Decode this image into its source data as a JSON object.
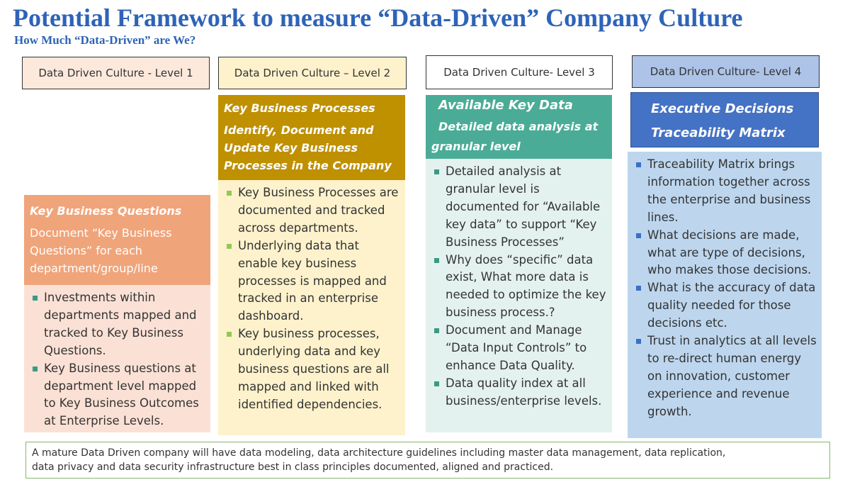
{
  "title": "Potential Framework to measure “Data-Driven” Company Culture",
  "subtitle": "How Much “Data-Driven” are We?",
  "columns": [
    {
      "level_label": "Data Driven Culture -  Level 1",
      "heading_lines": [
        "Key Business  Questions",
        "Document “Key Business",
        "Questions” for each",
        "department/group/line"
      ],
      "bullets": [
        "Investments within departments mapped and tracked to Key Business Questions.",
        "Key Business questions at department level mapped to Key Business Outcomes at Enterprise Levels."
      ]
    },
    {
      "level_label": "Data Driven Culture – Level  2",
      "heading_lines": [
        "Key Business Processes",
        "Identify, Document and",
        "Update Key Business",
        "Processes in the Company"
      ],
      "bullets": [
        "Key Business Processes are documented and tracked across departments.",
        "Underlying data that enable key business processes is mapped and tracked in an enterprise dashboard.",
        "Key business processes, underlying data and key business questions are all mapped and linked with identified dependencies."
      ]
    },
    {
      "level_label": "Data Driven Culture- Level 3",
      "heading_lines": [
        "Available Key Data",
        "Detailed data analysis at",
        "granular level"
      ],
      "bullets": [
        "Detailed analysis at granular level is documented for “Available key data” to support “Key Business Processes”",
        "Why does “specific” data exist, What more data is needed to optimize the key business process.?",
        "Document and Manage “Data Input Controls” to enhance Data Quality.",
        "Data quality index at all business/enterprise levels."
      ]
    },
    {
      "level_label": "Data Driven Culture- Level 4",
      "heading_lines": [
        "Executive Decisions",
        "Traceability Matrix"
      ],
      "bullets": [
        "Traceability Matrix brings information together across the enterprise and business lines.",
        "What decisions are made, what are type of decisions, who makes those decisions.",
        "What is the accuracy of data quality needed for those decisions etc.",
        "Trust in analytics at all levels to re-direct human energy on innovation, customer experience and revenue growth."
      ]
    }
  ],
  "footer_lines": [
    "A mature Data Driven company will have data modeling, data architecture guidelines including  master data management, data replication,",
    "data privacy and data security infrastructure best in class principles documented, aligned and practiced."
  ],
  "colors": {
    "title": "#2e63b8",
    "level1_head": "#f0a47a",
    "level1_body": "#fbe1d5",
    "level1_bullet": "#3a9a84",
    "level2_head": "#bf9000",
    "level2_body": "#fdf2cc",
    "level2_bullet": "#92c955",
    "level3_head": "#4aac96",
    "level3_body": "#e4f2ef",
    "level3_bullet": "#3a9a84",
    "level4_head": "#4472c4",
    "level4_body": "#bdd6ee",
    "level4_bullet": "#3b6fc6"
  }
}
